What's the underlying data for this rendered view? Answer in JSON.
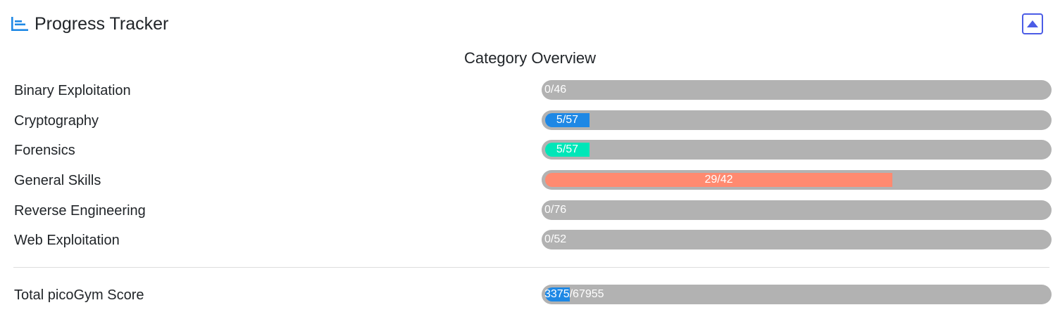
{
  "header": {
    "title": "Progress Tracker",
    "icon": "bar-chart-icon",
    "collapse_icon": "caret-up-square-icon",
    "accent_color": "#1e88e5",
    "button_color": "#4b5ce6"
  },
  "overview": {
    "title": "Category Overview",
    "track_color": "#b2b2b2",
    "categories": [
      {
        "label": "Binary Exploitation",
        "solved": 0,
        "total": 46,
        "text": "0/46",
        "color": "#1e88e5"
      },
      {
        "label": "Cryptography",
        "solved": 5,
        "total": 57,
        "text": "5/57",
        "color": "#1e88e5"
      },
      {
        "label": "Forensics",
        "solved": 5,
        "total": 57,
        "text": "5/57",
        "color": "#00e6b8"
      },
      {
        "label": "General Skills",
        "solved": 29,
        "total": 42,
        "text": "29/42",
        "color": "#ff8a70"
      },
      {
        "label": "Reverse Engineering",
        "solved": 0,
        "total": 76,
        "text": "0/76",
        "color": "#1e88e5"
      },
      {
        "label": "Web Exploitation",
        "solved": 0,
        "total": 52,
        "text": "0/52",
        "color": "#1e88e5"
      }
    ]
  },
  "total": {
    "label": "Total picoGym Score",
    "score": 3375,
    "max": 67955,
    "score_text": "3375",
    "max_text": "/67955",
    "color": "#1e88e5"
  }
}
